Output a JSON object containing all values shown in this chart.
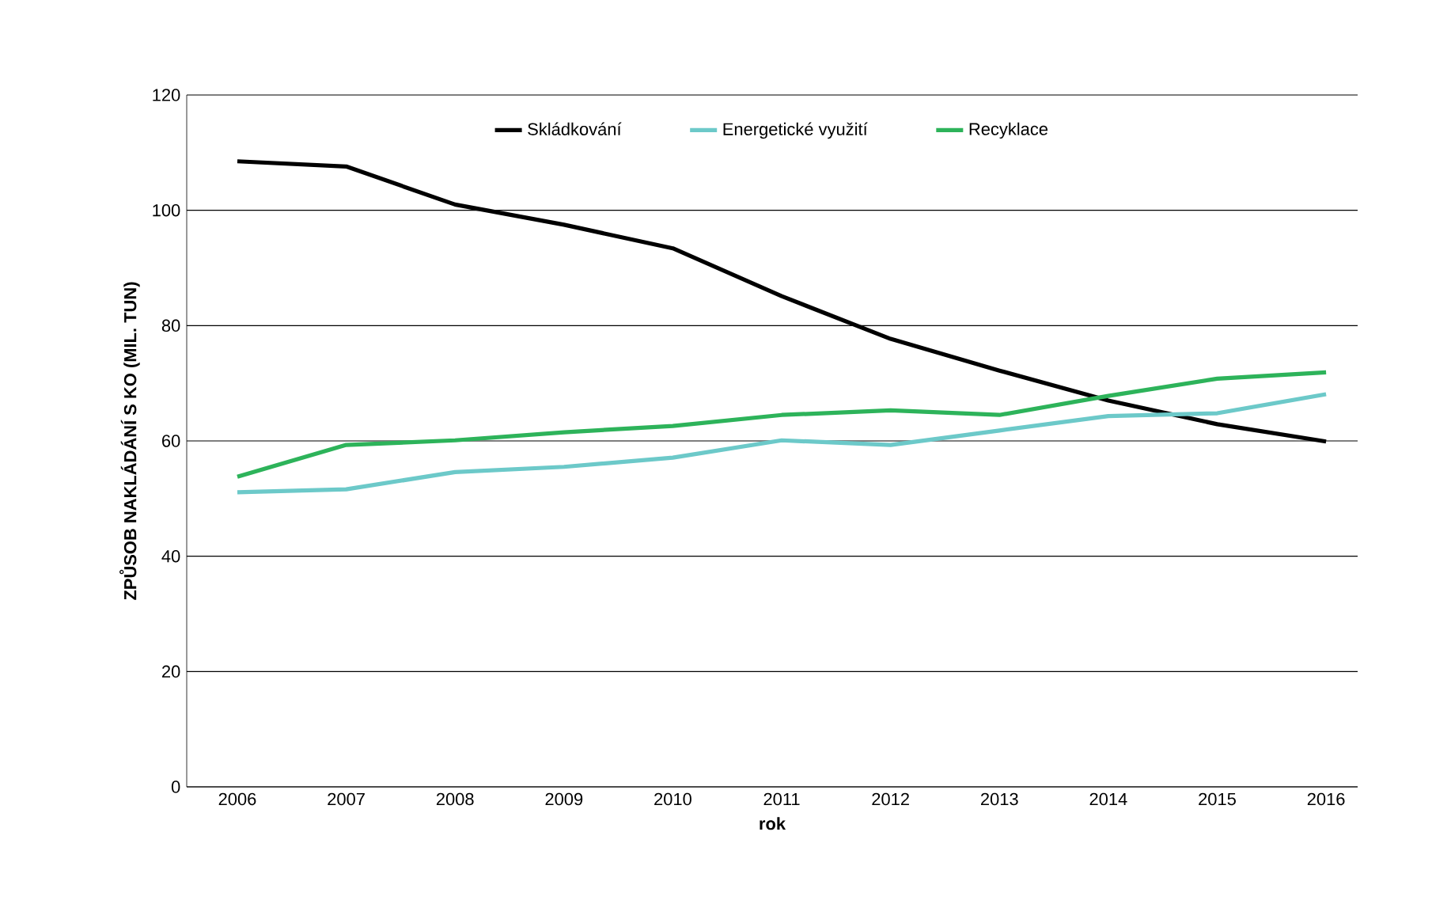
{
  "chart_data": {
    "type": "line",
    "xlabel": "rok",
    "ylabel": "ZPŮSOB NAKLÁDÁNÍ S KO (MIL. TUN)",
    "categories": [
      "2006",
      "2007",
      "2008",
      "2009",
      "2010",
      "2011",
      "2012",
      "2013",
      "2014",
      "2015",
      "2016"
    ],
    "series": [
      {
        "name": "Skládkování",
        "color": "#000000",
        "values": [
          108.5,
          107.6,
          101.0,
          97.5,
          93.4,
          85.1,
          77.7,
          72.2,
          67.0,
          62.9,
          59.9
        ]
      },
      {
        "name": "Energetické využití",
        "color": "#6cc9c9",
        "values": [
          51.1,
          51.6,
          54.6,
          55.5,
          57.1,
          60.1,
          59.3,
          61.8,
          64.3,
          64.8,
          68.1
        ]
      },
      {
        "name": "Recyklace",
        "color": "#2db35a",
        "values": [
          53.8,
          59.3,
          60.1,
          61.5,
          62.6,
          64.5,
          65.3,
          64.5,
          67.8,
          70.8,
          71.9
        ]
      }
    ],
    "ylim": [
      0,
      120
    ],
    "yticks": [
      0,
      20,
      40,
      60,
      80,
      100,
      120
    ],
    "grid": "y",
    "legend": "top",
    "marker": "none",
    "line_style": "solid"
  }
}
